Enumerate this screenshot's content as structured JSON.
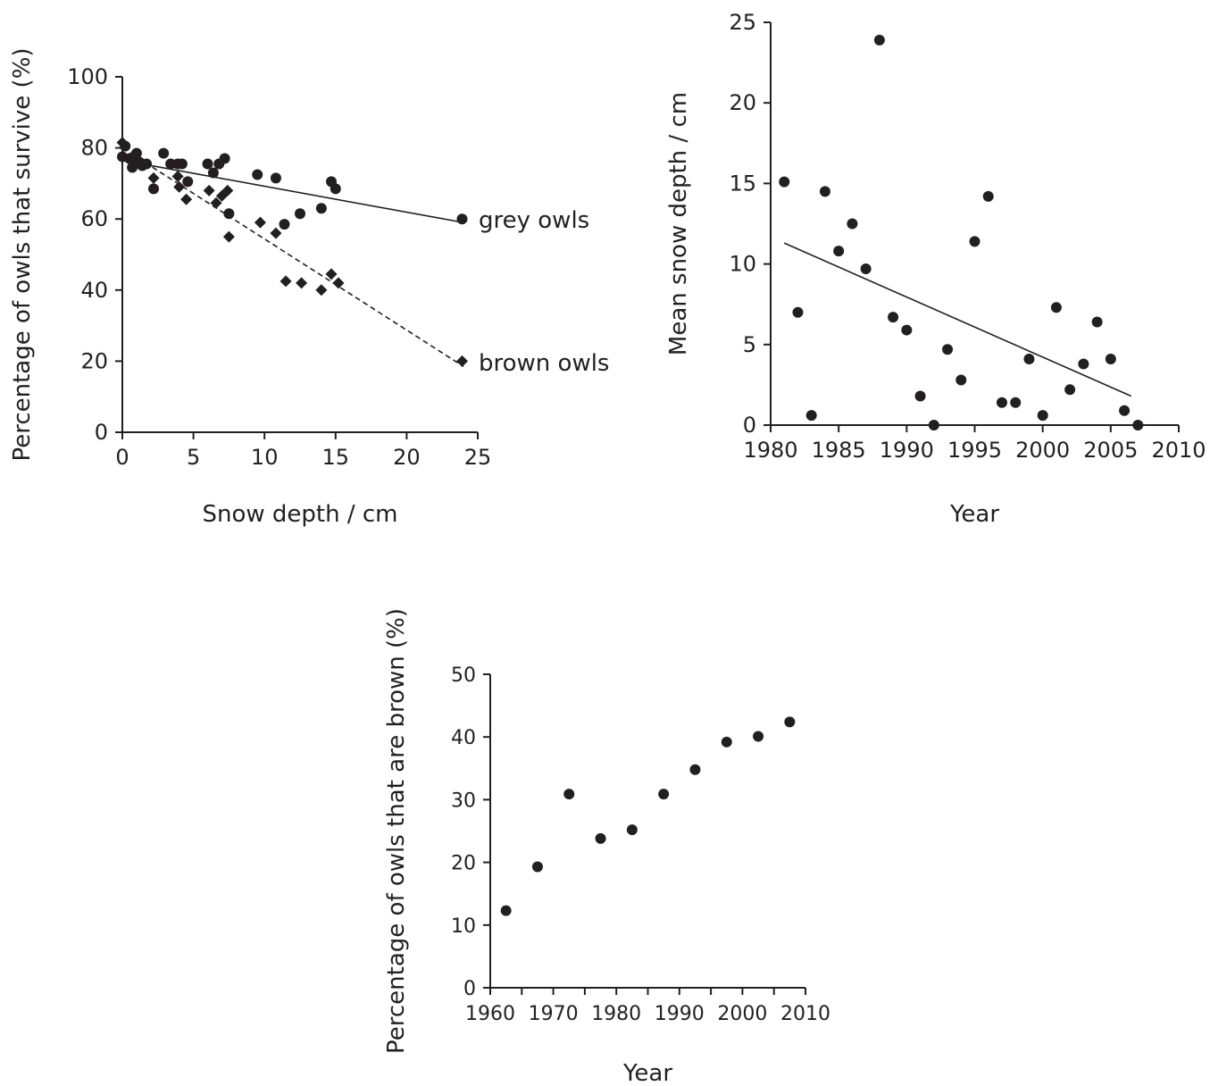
{
  "chart_data": [
    {
      "type": "scatter",
      "xlabel": "Snow depth / cm",
      "ylabel": "Percentage of owls that survive (%)",
      "xlim": [
        0,
        25
      ],
      "ylim": [
        0,
        100
      ],
      "xticks": [
        0,
        5,
        10,
        15,
        20,
        25
      ],
      "yticks": [
        0,
        20,
        40,
        60,
        80,
        100
      ],
      "grid": false,
      "series": [
        {
          "name": "grey owls",
          "marker": "circle",
          "points": [
            [
              0,
              77.5
            ],
            [
              0.2,
              80.5
            ],
            [
              0.5,
              77
            ],
            [
              0.7,
              74.5
            ],
            [
              1,
              78.5
            ],
            [
              1.2,
              76
            ],
            [
              1.4,
              75
            ],
            [
              1.7,
              75.5
            ],
            [
              2.2,
              68.5
            ],
            [
              2.9,
              78.5
            ],
            [
              3.4,
              75.5
            ],
            [
              3.9,
              75.5
            ],
            [
              4.2,
              75.5
            ],
            [
              4.6,
              70.5
            ],
            [
              6,
              75.5
            ],
            [
              6.4,
              73
            ],
            [
              6.8,
              75.5
            ],
            [
              7.2,
              77
            ],
            [
              7.5,
              61.5
            ],
            [
              9.5,
              72.5
            ],
            [
              10.8,
              71.5
            ],
            [
              11.4,
              58.5
            ],
            [
              12.5,
              61.5
            ],
            [
              14,
              63
            ],
            [
              14.7,
              70.5
            ],
            [
              15,
              68.5
            ],
            [
              23.9,
              60
            ]
          ],
          "trend": {
            "style": "solid",
            "from": [
              0,
              76.5
            ],
            "to": [
              24,
              59
            ]
          }
        },
        {
          "name": "brown owls",
          "marker": "diamond",
          "points": [
            [
              0,
              81.5
            ],
            [
              0.9,
              77
            ],
            [
              2.2,
              71.5
            ],
            [
              3.9,
              72
            ],
            [
              4,
              69
            ],
            [
              4.5,
              65.5
            ],
            [
              6.1,
              68
            ],
            [
              6.6,
              64.5
            ],
            [
              7,
              66.5
            ],
            [
              7.4,
              68
            ],
            [
              7.5,
              55
            ],
            [
              9.7,
              59
            ],
            [
              10.8,
              56
            ],
            [
              11.5,
              42.5
            ],
            [
              12.6,
              42
            ],
            [
              14,
              40
            ],
            [
              14.7,
              44.5
            ],
            [
              15.2,
              42
            ],
            [
              23.9,
              20
            ]
          ],
          "trend": {
            "style": "dashed",
            "from": [
              0,
              80
            ],
            "to": [
              24,
              18.5
            ]
          }
        }
      ],
      "annotations": [
        "grey owls",
        "brown owls"
      ]
    },
    {
      "type": "scatter",
      "xlabel": "Year",
      "ylabel": "Mean snow depth / cm",
      "xlim": [
        1980,
        2010
      ],
      "ylim": [
        0,
        25
      ],
      "xticks": [
        1980,
        1985,
        1990,
        1995,
        2000,
        2005,
        2010
      ],
      "yticks": [
        0,
        5,
        10,
        15,
        20,
        25
      ],
      "grid": false,
      "series": [
        {
          "marker": "circle",
          "points": [
            [
              1981,
              15.1
            ],
            [
              1982,
              7
            ],
            [
              1983,
              0.6
            ],
            [
              1984,
              14.5
            ],
            [
              1985,
              10.8
            ],
            [
              1986,
              12.5
            ],
            [
              1987,
              9.7
            ],
            [
              1988,
              23.9
            ],
            [
              1989,
              6.7
            ],
            [
              1990,
              5.9
            ],
            [
              1991,
              1.8
            ],
            [
              1992,
              0
            ],
            [
              1993,
              4.7
            ],
            [
              1994,
              2.8
            ],
            [
              1995,
              11.4
            ],
            [
              1996,
              14.2
            ],
            [
              1997,
              1.4
            ],
            [
              1998,
              1.4
            ],
            [
              1999,
              4.1
            ],
            [
              2000,
              0.6
            ],
            [
              2001,
              7.3
            ],
            [
              2002,
              2.2
            ],
            [
              2003,
              3.8
            ],
            [
              2004,
              6.4
            ],
            [
              2005,
              4.1
            ],
            [
              2006,
              0.9
            ],
            [
              2007,
              0
            ]
          ],
          "trend": {
            "style": "solid",
            "from": [
              1981,
              11.3
            ],
            "to": [
              2006.5,
              1.8
            ]
          }
        }
      ]
    },
    {
      "type": "scatter",
      "xlabel": "Year",
      "ylabel": "Percentage of owls that are brown (%)",
      "xlim": [
        1960,
        2010
      ],
      "ylim": [
        0,
        50
      ],
      "xticks": [
        1960,
        1970,
        1980,
        1990,
        2000,
        2010
      ],
      "yticks": [
        0,
        10,
        20,
        30,
        40,
        50
      ],
      "grid": false,
      "series": [
        {
          "marker": "circle",
          "points": [
            [
              1962.5,
              12.3
            ],
            [
              1967.5,
              19.3
            ],
            [
              1972.5,
              30.9
            ],
            [
              1977.5,
              23.8
            ],
            [
              1982.5,
              25.2
            ],
            [
              1987.5,
              30.9
            ],
            [
              1992.5,
              34.8
            ],
            [
              1997.5,
              39.2
            ],
            [
              2002.5,
              40.1
            ],
            [
              2007.5,
              42.4
            ]
          ]
        }
      ]
    }
  ]
}
